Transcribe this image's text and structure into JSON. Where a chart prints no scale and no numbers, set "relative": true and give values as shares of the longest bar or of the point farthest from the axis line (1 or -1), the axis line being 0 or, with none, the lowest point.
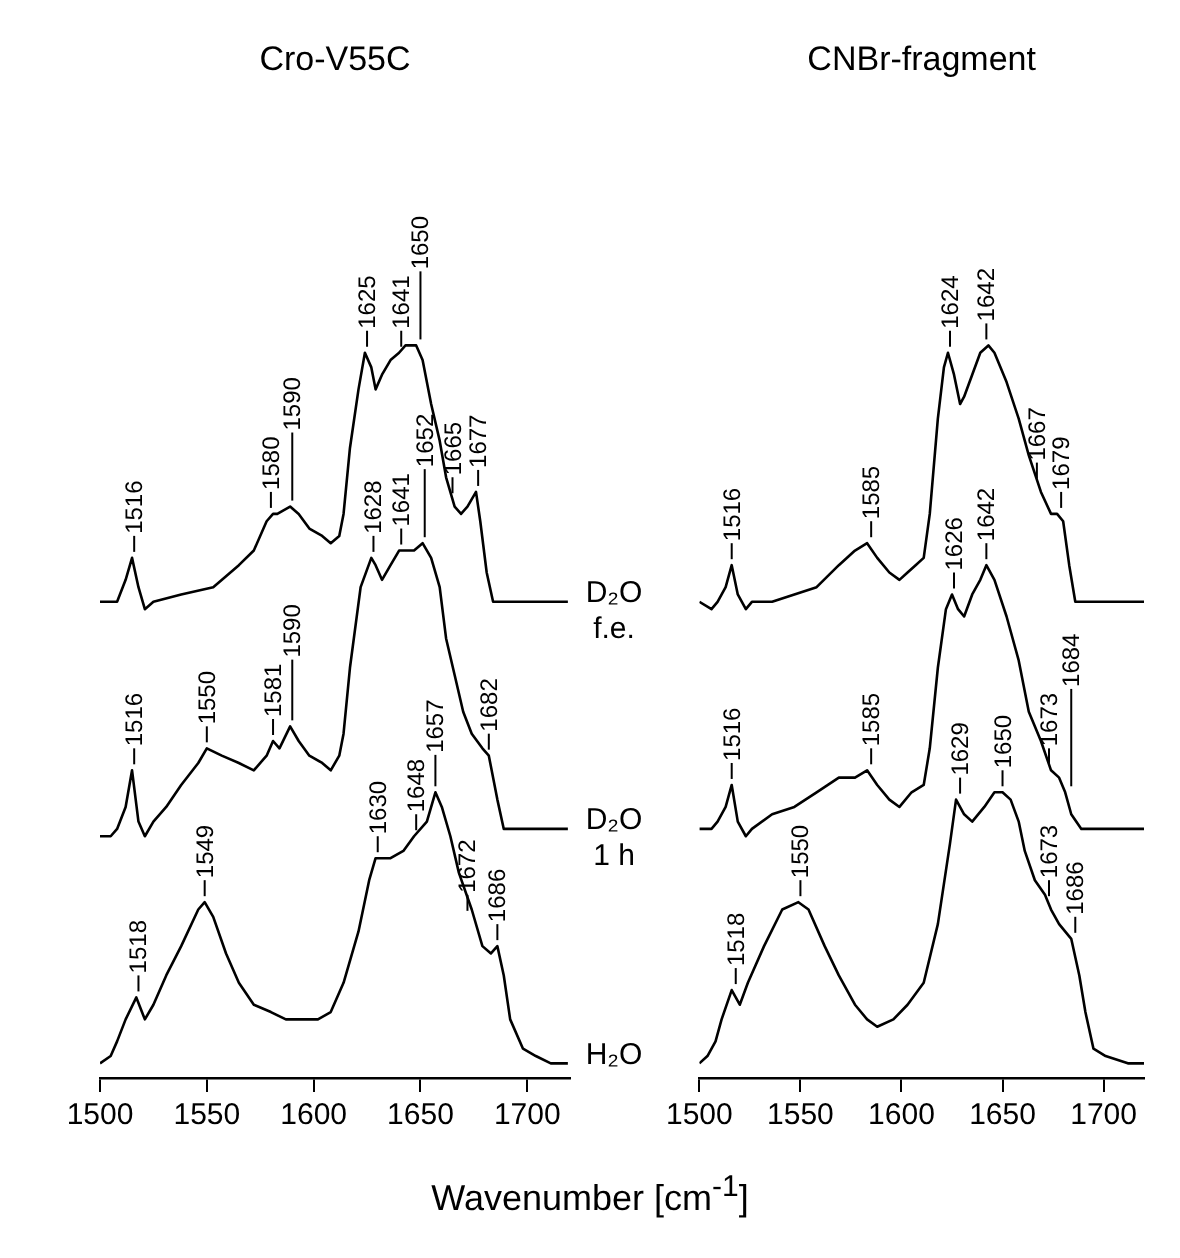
{
  "chart_data": [
    {
      "type": "line",
      "title": "Cro-V55C",
      "xlabel": "Wavenumber [cm$^{-1}$]",
      "relative": true,
      "xlim": [
        1500,
        1720
      ],
      "xticks": [
        1500,
        1550,
        1600,
        1650,
        1700
      ],
      "series": [
        {
          "name": "D₂O f.e.",
          "color": "#000000",
          "x": [
            1500,
            1505,
            1508,
            1512,
            1515,
            1518,
            1521,
            1525,
            1538,
            1553,
            1565,
            1572,
            1578,
            1581,
            1583,
            1589,
            1593,
            1598,
            1604,
            1608,
            1612,
            1614,
            1617,
            1621,
            1624,
            1627,
            1629,
            1632,
            1636,
            1640,
            1643,
            1648,
            1651,
            1655,
            1659,
            1662,
            1666,
            1669,
            1672,
            1676,
            1678,
            1681,
            1684,
            1689,
            1700,
            1719
          ],
          "values": [
            0.65,
            0.65,
            0.65,
            0.68,
            0.71,
            0.67,
            0.64,
            0.65,
            0.66,
            0.67,
            0.7,
            0.72,
            0.76,
            0.77,
            0.77,
            0.78,
            0.77,
            0.75,
            0.74,
            0.73,
            0.74,
            0.77,
            0.86,
            0.94,
            0.99,
            0.97,
            0.94,
            0.96,
            0.98,
            0.99,
            1.0,
            1.0,
            0.98,
            0.92,
            0.87,
            0.82,
            0.78,
            0.77,
            0.78,
            0.8,
            0.76,
            0.69,
            0.65,
            0.65,
            0.65,
            0.65
          ]
        },
        {
          "name": "D₂O 1 h",
          "color": "#000000",
          "x": [
            1500,
            1505,
            1508,
            1512,
            1515,
            1518,
            1521,
            1525,
            1531,
            1538,
            1546,
            1550,
            1557,
            1565,
            1572,
            1578,
            1581,
            1584,
            1589,
            1593,
            1598,
            1604,
            1608,
            1612,
            1614,
            1617,
            1622,
            1627,
            1629,
            1632,
            1636,
            1640,
            1643,
            1647,
            1651,
            1655,
            1659,
            1662,
            1666,
            1670,
            1674,
            1679,
            1682,
            1686,
            1689,
            1694,
            1719
          ],
          "values": [
            0.33,
            0.33,
            0.34,
            0.37,
            0.42,
            0.35,
            0.33,
            0.35,
            0.37,
            0.4,
            0.43,
            0.45,
            0.44,
            0.43,
            0.42,
            0.44,
            0.46,
            0.45,
            0.48,
            0.46,
            0.44,
            0.43,
            0.42,
            0.44,
            0.47,
            0.56,
            0.67,
            0.71,
            0.7,
            0.68,
            0.7,
            0.72,
            0.72,
            0.72,
            0.73,
            0.71,
            0.67,
            0.6,
            0.55,
            0.5,
            0.47,
            0.45,
            0.44,
            0.38,
            0.34,
            0.34,
            0.34
          ]
        },
        {
          "name": "H₂O",
          "color": "#000000",
          "x": [
            1500,
            1505,
            1508,
            1512,
            1517,
            1521,
            1525,
            1531,
            1538,
            1546,
            1549,
            1553,
            1559,
            1565,
            1572,
            1580,
            1587,
            1595,
            1602,
            1608,
            1614,
            1621,
            1626,
            1629,
            1632,
            1636,
            1642,
            1647,
            1653,
            1657,
            1660,
            1664,
            1668,
            1674,
            1679,
            1683,
            1686,
            1689,
            1692,
            1698,
            1704,
            1711,
            1719
          ],
          "values": [
            0.02,
            0.03,
            0.05,
            0.08,
            0.11,
            0.08,
            0.1,
            0.14,
            0.18,
            0.23,
            0.24,
            0.22,
            0.17,
            0.13,
            0.1,
            0.09,
            0.08,
            0.08,
            0.08,
            0.09,
            0.13,
            0.2,
            0.27,
            0.3,
            0.3,
            0.3,
            0.31,
            0.33,
            0.35,
            0.39,
            0.37,
            0.33,
            0.28,
            0.23,
            0.18,
            0.17,
            0.18,
            0.14,
            0.08,
            0.04,
            0.03,
            0.02,
            0.02
          ]
        }
      ],
      "annotations": [
        {
          "text": "1516",
          "x": 1516,
          "y": 0.71
        },
        {
          "text": "1580",
          "x": 1580,
          "y": 0.77
        },
        {
          "text": "1590",
          "x": 1590,
          "y": 0.78
        },
        {
          "text": "1625",
          "x": 1625,
          "y": 0.99
        },
        {
          "text": "1641",
          "x": 1641,
          "y": 0.99
        },
        {
          "text": "1650",
          "x": 1650,
          "y": 1.0
        },
        {
          "text": "1665",
          "x": 1665,
          "y": 0.79
        },
        {
          "text": "1677",
          "x": 1677,
          "y": 0.8
        },
        {
          "text": "1516",
          "x": 1516,
          "y": 0.42
        },
        {
          "text": "1550",
          "x": 1550,
          "y": 0.45
        },
        {
          "text": "1581",
          "x": 1581,
          "y": 0.46
        },
        {
          "text": "1590",
          "x": 1590,
          "y": 0.48
        },
        {
          "text": "1628",
          "x": 1628,
          "y": 0.71
        },
        {
          "text": "1641",
          "x": 1641,
          "y": 0.72
        },
        {
          "text": "1652",
          "x": 1652,
          "y": 0.73
        },
        {
          "text": "1682",
          "x": 1682,
          "y": 0.44
        },
        {
          "text": "1518",
          "x": 1518,
          "y": 0.11
        },
        {
          "text": "1549",
          "x": 1549,
          "y": 0.24
        },
        {
          "text": "1630",
          "x": 1630,
          "y": 0.3
        },
        {
          "text": "1648",
          "x": 1648,
          "y": 0.33
        },
        {
          "text": "1657",
          "x": 1657,
          "y": 0.39
        },
        {
          "text": "1672",
          "x": 1672,
          "y": 0.22
        },
        {
          "text": "1686",
          "x": 1686,
          "y": 0.18
        }
      ]
    },
    {
      "type": "line",
      "title": "CNBr-fragment",
      "relative": true,
      "xlim": [
        1500,
        1720
      ],
      "xticks": [
        1500,
        1550,
        1600,
        1650,
        1700
      ],
      "series": [
        {
          "color": "#000000",
          "x": [
            1500,
            1506,
            1509,
            1513,
            1516,
            1519,
            1523,
            1526,
            1536,
            1547,
            1558,
            1569,
            1577,
            1583,
            1588,
            1594,
            1599,
            1603,
            1607,
            1611,
            1614,
            1618,
            1621,
            1623,
            1626,
            1629,
            1631,
            1635,
            1639,
            1643,
            1646,
            1652,
            1658,
            1663,
            1669,
            1674,
            1677,
            1680,
            1683,
            1686,
            1693,
            1712,
            1720
          ],
          "values": [
            0.65,
            0.64,
            0.65,
            0.67,
            0.7,
            0.66,
            0.64,
            0.65,
            0.65,
            0.66,
            0.67,
            0.7,
            0.72,
            0.73,
            0.71,
            0.69,
            0.68,
            0.69,
            0.7,
            0.71,
            0.77,
            0.9,
            0.97,
            0.99,
            0.96,
            0.92,
            0.93,
            0.96,
            0.99,
            1.0,
            0.99,
            0.95,
            0.9,
            0.85,
            0.8,
            0.77,
            0.77,
            0.76,
            0.7,
            0.65,
            0.65,
            0.65,
            0.65
          ]
        },
        {
          "color": "#000000",
          "x": [
            1500,
            1506,
            1509,
            1513,
            1516,
            1519,
            1523,
            1526,
            1536,
            1547,
            1558,
            1569,
            1577,
            1583,
            1588,
            1594,
            1599,
            1605,
            1611,
            1614,
            1618,
            1622,
            1625,
            1628,
            1631,
            1635,
            1639,
            1642,
            1646,
            1652,
            1658,
            1663,
            1669,
            1674,
            1678,
            1681,
            1684,
            1689,
            1712,
            1720
          ],
          "values": [
            0.34,
            0.34,
            0.35,
            0.37,
            0.4,
            0.35,
            0.33,
            0.34,
            0.36,
            0.37,
            0.39,
            0.41,
            0.41,
            0.42,
            0.4,
            0.38,
            0.37,
            0.39,
            0.4,
            0.45,
            0.56,
            0.64,
            0.66,
            0.64,
            0.63,
            0.66,
            0.68,
            0.7,
            0.68,
            0.63,
            0.57,
            0.5,
            0.46,
            0.42,
            0.41,
            0.39,
            0.36,
            0.34,
            0.34,
            0.34
          ]
        },
        {
          "color": "#000000",
          "x": [
            1500,
            1504,
            1508,
            1511,
            1516,
            1520,
            1524,
            1532,
            1541,
            1549,
            1554,
            1562,
            1569,
            1577,
            1583,
            1588,
            1596,
            1603,
            1611,
            1618,
            1624,
            1627,
            1631,
            1635,
            1641,
            1646,
            1650,
            1654,
            1658,
            1661,
            1666,
            1671,
            1674,
            1678,
            1684,
            1688,
            1691,
            1695,
            1701,
            1712,
            1720
          ],
          "values": [
            0.02,
            0.03,
            0.05,
            0.08,
            0.12,
            0.1,
            0.13,
            0.18,
            0.23,
            0.24,
            0.23,
            0.18,
            0.14,
            0.1,
            0.08,
            0.07,
            0.08,
            0.1,
            0.13,
            0.21,
            0.32,
            0.38,
            0.36,
            0.35,
            0.37,
            0.39,
            0.39,
            0.38,
            0.35,
            0.31,
            0.27,
            0.25,
            0.23,
            0.21,
            0.19,
            0.14,
            0.09,
            0.04,
            0.03,
            0.02,
            0.02
          ]
        }
      ],
      "annotations": [
        {
          "text": "1516",
          "x": 1516,
          "y": 0.7
        },
        {
          "text": "1585",
          "x": 1585,
          "y": 0.73
        },
        {
          "text": "1624",
          "x": 1624,
          "y": 0.99
        },
        {
          "text": "1642",
          "x": 1642,
          "y": 1.0
        },
        {
          "text": "1667",
          "x": 1667,
          "y": 0.81
        },
        {
          "text": "1679",
          "x": 1679,
          "y": 0.77
        },
        {
          "text": "1516",
          "x": 1516,
          "y": 0.4
        },
        {
          "text": "1585",
          "x": 1585,
          "y": 0.42
        },
        {
          "text": "1626",
          "x": 1626,
          "y": 0.66
        },
        {
          "text": "1642",
          "x": 1642,
          "y": 0.7
        },
        {
          "text": "1673",
          "x": 1673,
          "y": 0.42
        },
        {
          "text": "1684",
          "x": 1684,
          "y": 0.39
        },
        {
          "text": "1518",
          "x": 1518,
          "y": 0.12
        },
        {
          "text": "1550",
          "x": 1550,
          "y": 0.24
        },
        {
          "text": "1629",
          "x": 1629,
          "y": 0.38
        },
        {
          "text": "1650",
          "x": 1650,
          "y": 0.39
        },
        {
          "text": "1673",
          "x": 1673,
          "y": 0.24
        },
        {
          "text": "1686",
          "x": 1686,
          "y": 0.19
        }
      ]
    }
  ]
}
